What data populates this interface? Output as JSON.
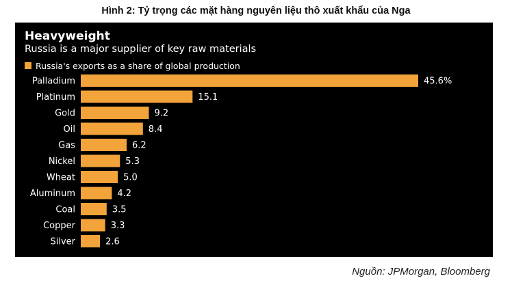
{
  "caption": "Hình 2: Tỷ trọng các mặt hàng nguyên liệu thô xuất khẩu của Nga",
  "source": "Nguồn: JPMorgan, Bloomberg",
  "colors": {
    "bar": "#f2a33a",
    "background": "#000000",
    "text": "#ffffff"
  },
  "chart_data": {
    "type": "bar",
    "orientation": "horizontal",
    "title": "Heavyweight",
    "subtitle": "Russia is a major supplier of key raw materials",
    "legend": "top-left",
    "grid": false,
    "series": [
      {
        "name": "Russia's exports as a share of global production",
        "values": [
          45.6,
          15.1,
          9.2,
          8.4,
          6.2,
          5.3,
          5.0,
          4.2,
          3.5,
          3.3,
          2.6
        ]
      }
    ],
    "categories": [
      "Palladium",
      "Platinum",
      "Gold",
      "Oil",
      "Gas",
      "Nickel",
      "Wheat",
      "Aluminum",
      "Coal",
      "Copper",
      "Silver"
    ],
    "value_labels": [
      "45.6%",
      "15.1",
      "9.2",
      "8.4",
      "6.2",
      "5.3",
      "5.0",
      "4.2",
      "3.5",
      "3.3",
      "2.6"
    ],
    "xlim": [
      0,
      45.6
    ]
  }
}
